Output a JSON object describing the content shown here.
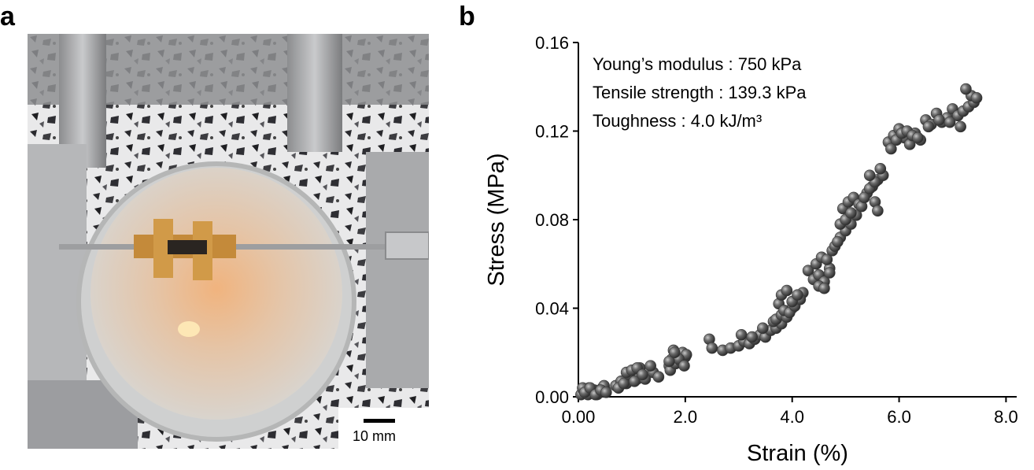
{
  "panel_a": {
    "letter": "a",
    "scale_bar_label": "10 mm"
  },
  "panel_b": {
    "letter": "b"
  },
  "chart_data": {
    "type": "scatter",
    "xlabel": "Strain (%)",
    "ylabel": "Stress (MPa)",
    "xlim": [
      0,
      8.2
    ],
    "ylim": [
      0,
      0.16
    ],
    "xticks": [
      "0.00",
      "2.0",
      "4.0",
      "6.0",
      "8.0"
    ],
    "yticks": [
      "0.00",
      "0.04",
      "0.08",
      "0.12",
      "0.16"
    ],
    "annotations": [
      "Young’s modulus : 750 kPa",
      "Tensile strength : 139.3 kPa",
      "Toughness : 4.0 kJ/m³"
    ],
    "marker_color": "#555555",
    "grid": false,
    "series": [
      {
        "x": [
          0.05,
          0.1,
          0.15,
          0.2,
          0.25,
          0.3,
          0.35,
          0.4,
          0.45,
          0.5,
          0.08,
          0.18,
          0.28,
          0.38,
          0.48,
          0.12,
          0.22,
          0.32,
          0.42,
          0.52,
          0.7,
          0.8,
          0.9,
          1.0,
          1.1,
          1.2,
          1.3,
          1.4,
          1.5,
          0.75,
          0.85,
          0.95,
          1.05,
          1.15,
          1.25,
          1.35,
          0.9,
          1.0,
          1.1,
          1.2,
          1.7,
          1.75,
          1.8,
          1.85,
          1.9,
          1.95,
          2.0,
          1.72,
          1.82,
          1.92,
          2.02,
          1.78,
          1.88,
          1.98,
          1.7,
          1.8,
          2.45,
          2.5,
          2.7,
          2.85,
          3.0,
          3.1,
          3.2,
          3.3,
          3.4,
          3.5,
          3.6,
          3.7,
          3.8,
          3.05,
          3.25,
          3.45,
          3.65,
          3.7,
          3.8,
          3.9,
          4.0,
          4.1,
          4.2,
          3.75,
          3.85,
          3.95,
          4.05,
          4.15,
          3.8,
          3.9,
          4.0,
          4.1,
          4.3,
          4.4,
          4.5,
          4.6,
          4.7,
          4.45,
          4.55,
          4.65,
          4.75,
          4.5,
          4.6,
          4.7,
          4.8,
          4.9,
          5.0,
          5.1,
          5.2,
          4.85,
          4.95,
          5.05,
          5.15,
          5.25,
          4.9,
          5.0,
          5.1,
          5.3,
          5.4,
          5.5,
          5.6,
          5.7,
          5.35,
          5.45,
          5.55,
          5.65,
          5.45,
          5.55,
          5.6,
          5.8,
          5.9,
          6.0,
          6.1,
          6.2,
          6.3,
          6.4,
          5.85,
          5.95,
          6.05,
          6.15,
          6.25,
          6.35,
          6.5,
          6.6,
          6.7,
          6.8,
          6.9,
          7.0,
          7.1,
          7.2,
          7.3,
          7.4,
          6.55,
          6.75,
          6.95,
          7.15,
          7.35,
          7.25,
          7.45
        ],
        "y": [
          0.001,
          0.003,
          0.002,
          0.004,
          0.002,
          0.003,
          0.001,
          0.002,
          0.004,
          0.003,
          0.004,
          0.001,
          0.003,
          0.002,
          0.005,
          0.002,
          0.004,
          0.001,
          0.003,
          0.002,
          0.005,
          0.007,
          0.006,
          0.009,
          0.008,
          0.01,
          0.012,
          0.011,
          0.009,
          0.004,
          0.006,
          0.01,
          0.007,
          0.013,
          0.008,
          0.014,
          0.011,
          0.012,
          0.013,
          0.01,
          0.014,
          0.017,
          0.016,
          0.019,
          0.018,
          0.02,
          0.018,
          0.012,
          0.015,
          0.016,
          0.019,
          0.021,
          0.017,
          0.014,
          0.016,
          0.02,
          0.026,
          0.022,
          0.021,
          0.022,
          0.023,
          0.025,
          0.024,
          0.026,
          0.028,
          0.027,
          0.03,
          0.031,
          0.033,
          0.028,
          0.027,
          0.031,
          0.034,
          0.035,
          0.037,
          0.036,
          0.04,
          0.045,
          0.047,
          0.042,
          0.039,
          0.038,
          0.041,
          0.044,
          0.046,
          0.048,
          0.043,
          0.046,
          0.057,
          0.053,
          0.055,
          0.052,
          0.058,
          0.06,
          0.063,
          0.062,
          0.066,
          0.05,
          0.049,
          0.056,
          0.068,
          0.072,
          0.075,
          0.078,
          0.082,
          0.07,
          0.085,
          0.088,
          0.09,
          0.087,
          0.078,
          0.08,
          0.083,
          0.086,
          0.092,
          0.095,
          0.098,
          0.1,
          0.09,
          0.094,
          0.097,
          0.103,
          0.1,
          0.088,
          0.084,
          0.115,
          0.118,
          0.121,
          0.117,
          0.114,
          0.119,
          0.116,
          0.112,
          0.116,
          0.119,
          0.12,
          0.118,
          0.117,
          0.125,
          0.123,
          0.128,
          0.124,
          0.126,
          0.13,
          0.127,
          0.129,
          0.131,
          0.133,
          0.122,
          0.125,
          0.124,
          0.122,
          0.136,
          0.139,
          0.135
        ]
      }
    ]
  }
}
